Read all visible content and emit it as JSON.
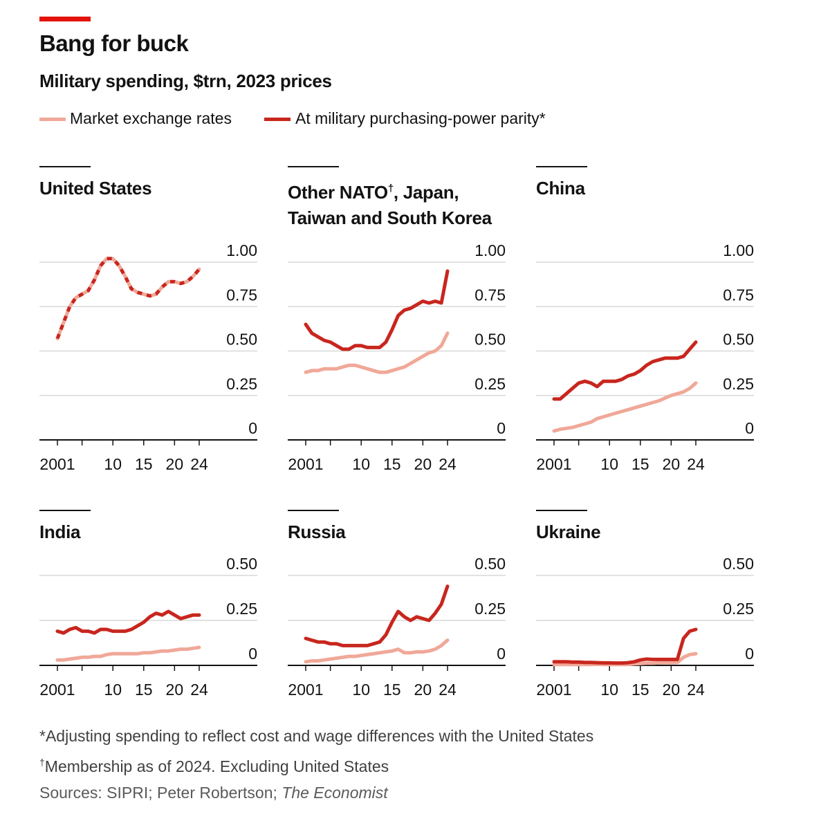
{
  "header": {
    "title": "Bang for buck",
    "subtitle": "Military spending, $trn, 2023 prices"
  },
  "legend": {
    "market": {
      "label": "Market exchange rates",
      "color": "#f0a898"
    },
    "ppp": {
      "label": "At military purchasing-power parity*",
      "color": "#c8261e"
    }
  },
  "footnotes": {
    "note1": "*Adjusting spending to reflect cost and wage differences with the United States",
    "note2_mark": "†",
    "note2": "Membership as of 2024. Excluding United States",
    "sources_prefix": "Sources: SIPRI; Peter Robertson; ",
    "sources_italic": "The Economist"
  },
  "chart_data": [
    {
      "type": "line",
      "title": "United States",
      "x_tick_labels": [
        "2001",
        "10",
        "15",
        "20",
        "24"
      ],
      "x_ticks": [
        2001,
        2005,
        2010,
        2015,
        2020,
        2024
      ],
      "xlim": [
        2001,
        2024
      ],
      "y_ticks": [
        0,
        0.25,
        0.5,
        0.75,
        1.0
      ],
      "y_tick_labels": [
        "0",
        "0.25",
        "0.50",
        "0.75",
        "1.00"
      ],
      "ylim": [
        0,
        1.0
      ],
      "overlapping_series": true,
      "series": [
        {
          "name": "Market exchange rates",
          "x": [
            2001,
            2002,
            2003,
            2004,
            2005,
            2006,
            2007,
            2008,
            2009,
            2010,
            2011,
            2012,
            2013,
            2014,
            2015,
            2016,
            2017,
            2018,
            2019,
            2020,
            2021,
            2022,
            2023,
            2024
          ],
          "values": [
            0.57,
            0.66,
            0.75,
            0.8,
            0.82,
            0.84,
            0.9,
            0.98,
            1.02,
            1.02,
            0.98,
            0.92,
            0.85,
            0.83,
            0.82,
            0.81,
            0.82,
            0.86,
            0.89,
            0.89,
            0.88,
            0.89,
            0.92,
            0.96
          ]
        },
        {
          "name": "At military purchasing-power parity*",
          "x": [
            2001,
            2002,
            2003,
            2004,
            2005,
            2006,
            2007,
            2008,
            2009,
            2010,
            2011,
            2012,
            2013,
            2014,
            2015,
            2016,
            2017,
            2018,
            2019,
            2020,
            2021,
            2022,
            2023,
            2024
          ],
          "values": [
            0.57,
            0.66,
            0.75,
            0.8,
            0.82,
            0.84,
            0.9,
            0.98,
            1.02,
            1.02,
            0.98,
            0.92,
            0.85,
            0.83,
            0.82,
            0.81,
            0.82,
            0.86,
            0.89,
            0.89,
            0.88,
            0.89,
            0.92,
            0.96
          ]
        }
      ]
    },
    {
      "type": "line",
      "title": "Other NATO†, Japan, Taiwan and South Korea",
      "title_lines": [
        "Other NATO",
        "†",
        ", Japan,",
        "Taiwan and South Korea"
      ],
      "x_tick_labels": [
        "2001",
        "10",
        "15",
        "20",
        "24"
      ],
      "x_ticks": [
        2001,
        2005,
        2010,
        2015,
        2020,
        2024
      ],
      "xlim": [
        2001,
        2024
      ],
      "y_ticks": [
        0,
        0.25,
        0.5,
        0.75,
        1.0
      ],
      "y_tick_labels": [
        "0",
        "0.25",
        "0.50",
        "0.75",
        "1.00"
      ],
      "ylim": [
        0,
        1.0
      ],
      "series": [
        {
          "name": "Market exchange rates",
          "x": [
            2001,
            2002,
            2003,
            2004,
            2005,
            2006,
            2007,
            2008,
            2009,
            2010,
            2011,
            2012,
            2013,
            2014,
            2015,
            2016,
            2017,
            2018,
            2019,
            2020,
            2021,
            2022,
            2023,
            2024
          ],
          "values": [
            0.38,
            0.39,
            0.39,
            0.4,
            0.4,
            0.4,
            0.41,
            0.42,
            0.42,
            0.41,
            0.4,
            0.39,
            0.38,
            0.38,
            0.39,
            0.4,
            0.41,
            0.43,
            0.45,
            0.47,
            0.49,
            0.5,
            0.53,
            0.6
          ]
        },
        {
          "name": "At military purchasing-power parity*",
          "x": [
            2001,
            2002,
            2003,
            2004,
            2005,
            2006,
            2007,
            2008,
            2009,
            2010,
            2011,
            2012,
            2013,
            2014,
            2015,
            2016,
            2017,
            2018,
            2019,
            2020,
            2021,
            2022,
            2023,
            2024
          ],
          "values": [
            0.65,
            0.6,
            0.58,
            0.56,
            0.55,
            0.53,
            0.51,
            0.51,
            0.53,
            0.53,
            0.52,
            0.52,
            0.52,
            0.55,
            0.62,
            0.7,
            0.73,
            0.74,
            0.76,
            0.78,
            0.77,
            0.78,
            0.77,
            0.95
          ]
        }
      ]
    },
    {
      "type": "line",
      "title": "China",
      "x_tick_labels": [
        "2001",
        "10",
        "15",
        "20",
        "24"
      ],
      "x_ticks": [
        2001,
        2005,
        2010,
        2015,
        2020,
        2024
      ],
      "xlim": [
        2001,
        2024
      ],
      "y_ticks": [
        0,
        0.25,
        0.5,
        0.75,
        1.0
      ],
      "y_tick_labels": [
        "0",
        "0.25",
        "0.50",
        "0.75",
        "1.00"
      ],
      "ylim": [
        0,
        1.0
      ],
      "series": [
        {
          "name": "Market exchange rates",
          "x": [
            2001,
            2002,
            2003,
            2004,
            2005,
            2006,
            2007,
            2008,
            2009,
            2010,
            2011,
            2012,
            2013,
            2014,
            2015,
            2016,
            2017,
            2018,
            2019,
            2020,
            2021,
            2022,
            2023,
            2024
          ],
          "values": [
            0.05,
            0.06,
            0.065,
            0.07,
            0.08,
            0.09,
            0.1,
            0.12,
            0.13,
            0.14,
            0.15,
            0.16,
            0.17,
            0.18,
            0.19,
            0.2,
            0.21,
            0.22,
            0.235,
            0.25,
            0.26,
            0.27,
            0.29,
            0.32
          ]
        },
        {
          "name": "At military purchasing-power parity*",
          "x": [
            2001,
            2002,
            2003,
            2004,
            2005,
            2006,
            2007,
            2008,
            2009,
            2010,
            2011,
            2012,
            2013,
            2014,
            2015,
            2016,
            2017,
            2018,
            2019,
            2020,
            2021,
            2022,
            2023,
            2024
          ],
          "values": [
            0.23,
            0.23,
            0.26,
            0.29,
            0.32,
            0.33,
            0.32,
            0.3,
            0.33,
            0.33,
            0.33,
            0.34,
            0.36,
            0.37,
            0.39,
            0.42,
            0.44,
            0.45,
            0.46,
            0.46,
            0.46,
            0.47,
            0.51,
            0.55
          ]
        }
      ]
    },
    {
      "type": "line",
      "title": "India",
      "x_tick_labels": [
        "2001",
        "10",
        "15",
        "20",
        "24"
      ],
      "x_ticks": [
        2001,
        2005,
        2010,
        2015,
        2020,
        2024
      ],
      "xlim": [
        2001,
        2024
      ],
      "y_ticks": [
        0,
        0.25,
        0.5
      ],
      "y_tick_labels": [
        "0",
        "0.25",
        "0.50"
      ],
      "ylim": [
        0,
        0.5
      ],
      "series": [
        {
          "name": "Market exchange rates",
          "x": [
            2001,
            2002,
            2003,
            2004,
            2005,
            2006,
            2007,
            2008,
            2009,
            2010,
            2011,
            2012,
            2013,
            2014,
            2015,
            2016,
            2017,
            2018,
            2019,
            2020,
            2021,
            2022,
            2023,
            2024
          ],
          "values": [
            0.03,
            0.03,
            0.035,
            0.04,
            0.045,
            0.045,
            0.05,
            0.05,
            0.06,
            0.065,
            0.065,
            0.065,
            0.065,
            0.065,
            0.07,
            0.07,
            0.075,
            0.08,
            0.08,
            0.085,
            0.09,
            0.09,
            0.095,
            0.1
          ]
        },
        {
          "name": "At military purchasing-power parity*",
          "x": [
            2001,
            2002,
            2003,
            2004,
            2005,
            2006,
            2007,
            2008,
            2009,
            2010,
            2011,
            2012,
            2013,
            2014,
            2015,
            2016,
            2017,
            2018,
            2019,
            2020,
            2021,
            2022,
            2023,
            2024
          ],
          "values": [
            0.19,
            0.18,
            0.2,
            0.21,
            0.19,
            0.19,
            0.18,
            0.2,
            0.2,
            0.19,
            0.19,
            0.19,
            0.2,
            0.22,
            0.24,
            0.27,
            0.29,
            0.28,
            0.3,
            0.28,
            0.26,
            0.27,
            0.28,
            0.28
          ]
        }
      ]
    },
    {
      "type": "line",
      "title": "Russia",
      "x_tick_labels": [
        "2001",
        "10",
        "15",
        "20",
        "24"
      ],
      "x_ticks": [
        2001,
        2005,
        2010,
        2015,
        2020,
        2024
      ],
      "xlim": [
        2001,
        2024
      ],
      "y_ticks": [
        0,
        0.25,
        0.5
      ],
      "y_tick_labels": [
        "0",
        "0.25",
        "0.50"
      ],
      "ylim": [
        0,
        0.5
      ],
      "series": [
        {
          "name": "Market exchange rates",
          "x": [
            2001,
            2002,
            2003,
            2004,
            2005,
            2006,
            2007,
            2008,
            2009,
            2010,
            2011,
            2012,
            2013,
            2014,
            2015,
            2016,
            2017,
            2018,
            2019,
            2020,
            2021,
            2022,
            2023,
            2024
          ],
          "values": [
            0.02,
            0.025,
            0.025,
            0.03,
            0.035,
            0.04,
            0.045,
            0.05,
            0.05,
            0.055,
            0.06,
            0.065,
            0.07,
            0.075,
            0.08,
            0.09,
            0.07,
            0.07,
            0.075,
            0.075,
            0.08,
            0.09,
            0.11,
            0.14
          ]
        },
        {
          "name": "At military purchasing-power parity*",
          "x": [
            2001,
            2002,
            2003,
            2004,
            2005,
            2006,
            2007,
            2008,
            2009,
            2010,
            2011,
            2012,
            2013,
            2014,
            2015,
            2016,
            2017,
            2018,
            2019,
            2020,
            2021,
            2022,
            2023,
            2024
          ],
          "values": [
            0.15,
            0.14,
            0.13,
            0.13,
            0.12,
            0.12,
            0.11,
            0.11,
            0.11,
            0.11,
            0.11,
            0.12,
            0.13,
            0.17,
            0.24,
            0.3,
            0.27,
            0.25,
            0.27,
            0.26,
            0.25,
            0.29,
            0.34,
            0.44
          ]
        }
      ]
    },
    {
      "type": "line",
      "title": "Ukraine",
      "x_tick_labels": [
        "2001",
        "10",
        "15",
        "20",
        "24"
      ],
      "x_ticks": [
        2001,
        2005,
        2010,
        2015,
        2020,
        2024
      ],
      "xlim": [
        2001,
        2024
      ],
      "y_ticks": [
        0,
        0.25,
        0.5
      ],
      "y_tick_labels": [
        "0",
        "0.25",
        "0.50"
      ],
      "ylim": [
        0,
        0.5
      ],
      "series": [
        {
          "name": "Market exchange rates",
          "x": [
            2001,
            2002,
            2003,
            2004,
            2005,
            2006,
            2007,
            2008,
            2009,
            2010,
            2011,
            2012,
            2013,
            2014,
            2015,
            2016,
            2017,
            2018,
            2019,
            2020,
            2021,
            2022,
            2023,
            2024
          ],
          "values": [
            0.005,
            0.005,
            0.005,
            0.005,
            0.005,
            0.005,
            0.005,
            0.006,
            0.005,
            0.005,
            0.005,
            0.005,
            0.005,
            0.008,
            0.01,
            0.012,
            0.012,
            0.014,
            0.015,
            0.015,
            0.016,
            0.045,
            0.06,
            0.065
          ]
        },
        {
          "name": "At military purchasing-power parity*",
          "x": [
            2001,
            2002,
            2003,
            2004,
            2005,
            2006,
            2007,
            2008,
            2009,
            2010,
            2011,
            2012,
            2013,
            2014,
            2015,
            2016,
            2017,
            2018,
            2019,
            2020,
            2021,
            2022,
            2023,
            2024
          ],
          "values": [
            0.02,
            0.02,
            0.02,
            0.018,
            0.018,
            0.016,
            0.016,
            0.015,
            0.014,
            0.014,
            0.013,
            0.013,
            0.015,
            0.02,
            0.03,
            0.035,
            0.033,
            0.033,
            0.033,
            0.033,
            0.033,
            0.15,
            0.19,
            0.2
          ]
        }
      ]
    }
  ]
}
